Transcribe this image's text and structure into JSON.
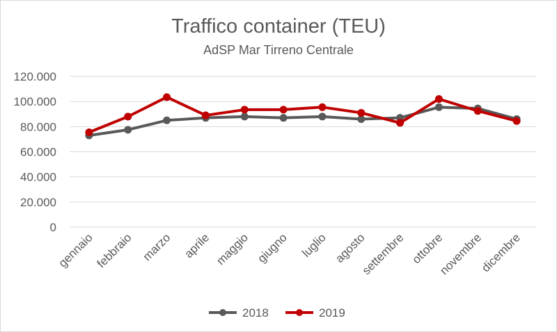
{
  "chart_data": {
    "type": "line",
    "title": "Traffico container (TEU)",
    "subtitle": "AdSP Mar Tirreno Centrale",
    "xlabel": "",
    "ylabel": "",
    "categories": [
      "gennaio",
      "febbraio",
      "marzo",
      "aprile",
      "maggio",
      "giugno",
      "luglio",
      "agosto",
      "settembre",
      "ottobre",
      "novembre",
      "dicembre"
    ],
    "y_ticks": [
      "0",
      "20.000",
      "40.000",
      "60.000",
      "80.000",
      "100.000",
      "120.000"
    ],
    "ylim": [
      0,
      120000
    ],
    "grid": true,
    "legend_position": "bottom",
    "series": [
      {
        "name": "2018",
        "color": "#595959",
        "values": [
          73000,
          77500,
          85000,
          87000,
          88000,
          87000,
          88000,
          86000,
          87000,
          95500,
          94500,
          86000
        ]
      },
      {
        "name": "2019",
        "color": "#c00000",
        "values": [
          75500,
          88000,
          103500,
          89000,
          93500,
          93500,
          95500,
          91000,
          83000,
          102000,
          92500,
          84500
        ]
      }
    ]
  }
}
